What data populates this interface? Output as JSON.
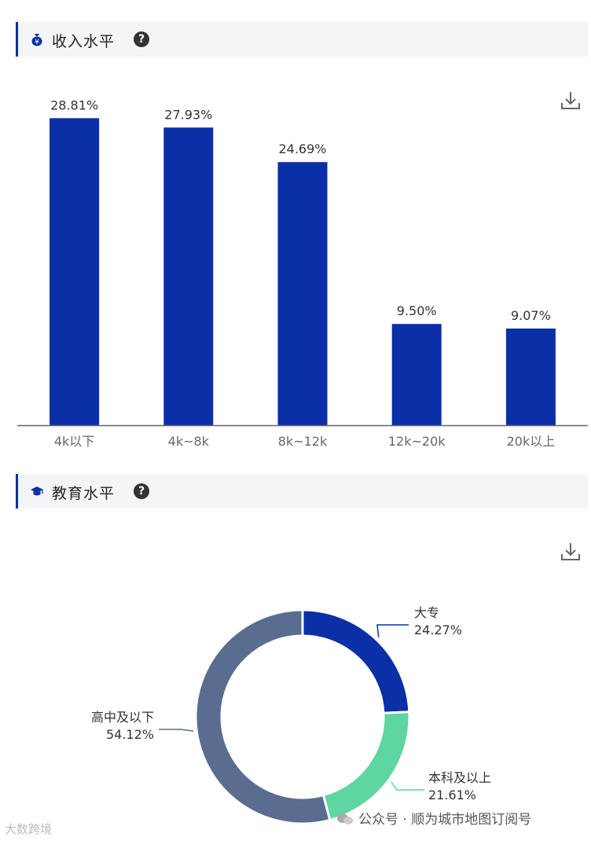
{
  "sections": {
    "income": {
      "title": "收入水平",
      "help": "?"
    },
    "education": {
      "title": "教育水平",
      "help": "?"
    }
  },
  "colors": {
    "accent": "#0a2fa6",
    "bar": "#0a2fa6",
    "pie": [
      "#0a2fa6",
      "#5dd6a1",
      "#5a6c8f"
    ]
  },
  "icons": {
    "income": "money-bag-icon",
    "education": "graduation-cap-icon",
    "download": "download-icon"
  },
  "chart_data": [
    {
      "type": "bar",
      "categories": [
        "4k以下",
        "4k~8k",
        "8k~12k",
        "12k~20k",
        "20k以上"
      ],
      "values": [
        28.81,
        27.93,
        24.69,
        9.5,
        9.07
      ],
      "labels": [
        "28.81%",
        "27.93%",
        "24.69%",
        "9.50%",
        "9.07%"
      ],
      "ylim": [
        0,
        29.5
      ],
      "grid": false
    },
    {
      "type": "pie",
      "donut": true,
      "slices": [
        {
          "name": "大专",
          "value": 24.27,
          "label": "24.27%"
        },
        {
          "name": "本科及以上",
          "value": 21.61,
          "label": "21.61%"
        },
        {
          "name": "高中及以下",
          "value": 54.12,
          "label": "54.12%"
        }
      ]
    }
  ],
  "footer": {
    "watermark": "大数跨境",
    "source": "公众号 · 顺为城市地图订阅号"
  }
}
